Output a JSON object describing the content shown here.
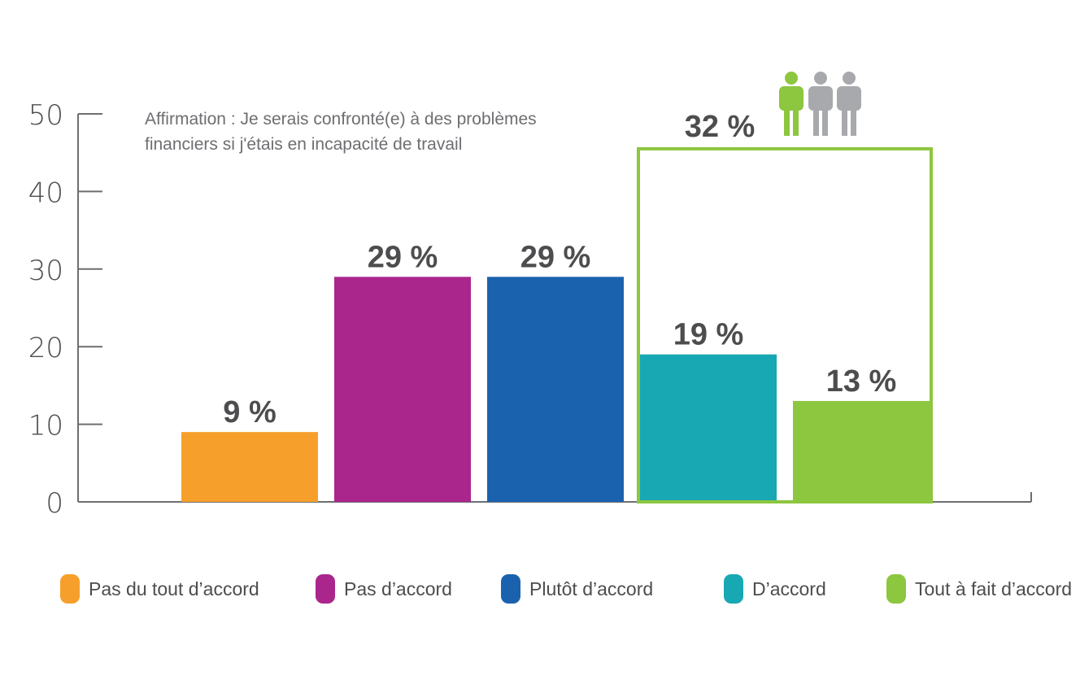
{
  "statement": {
    "line1": "Affirmation : Je serais confronté(e) à des problèmes",
    "line2": "financiers si j'étais en incapacité de travail"
  },
  "group_highlight": {
    "label": "32 %",
    "icon": "people-icon",
    "color": "#8dc63f",
    "inactive_icon_color": "#a7a9ac"
  },
  "chart_data": {
    "type": "bar",
    "categories": [
      "Pas du tout d’accord",
      "Pas d’accord",
      "Plutôt d’accord",
      "D’accord",
      "Tout à fait d’accord"
    ],
    "values": [
      9,
      29,
      29,
      19,
      13
    ],
    "data_labels": [
      "9 %",
      "29 %",
      "29 %",
      "19 %",
      "13 %"
    ],
    "colors": [
      "#f6a02b",
      "#aa268d",
      "#1a62ae",
      "#17a8b4",
      "#8dc63f"
    ],
    "ylim": [
      0,
      50
    ],
    "yticks": [
      0,
      10,
      20,
      30,
      40,
      50
    ],
    "grid": false,
    "legend_position": "bottom"
  }
}
